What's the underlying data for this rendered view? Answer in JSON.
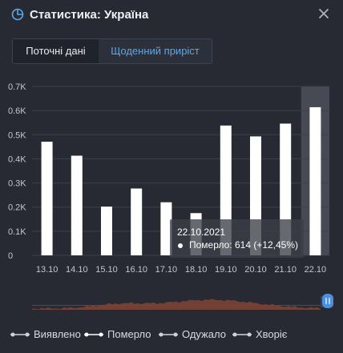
{
  "header": {
    "title": "Статистика: Україна"
  },
  "tabs": [
    {
      "label": "Поточні дані",
      "active": false
    },
    {
      "label": "Щоденний приріст",
      "active": true
    }
  ],
  "chart_data": {
    "type": "bar",
    "categories": [
      "13.10",
      "14.10",
      "15.10",
      "16.10",
      "17.10",
      "18.10",
      "19.10",
      "20.10",
      "21.10",
      "22.10"
    ],
    "series": [
      {
        "name": "Померло",
        "values": [
          471,
          413,
          202,
          277,
          220,
          175,
          538,
          493,
          546,
          614
        ]
      }
    ],
    "ylim": [
      0,
      700
    ],
    "yticks": [
      {
        "value": 0,
        "label": "0"
      },
      {
        "value": 100,
        "label": "0.1K"
      },
      {
        "value": 200,
        "label": "0.2K"
      },
      {
        "value": 300,
        "label": "0.3K"
      },
      {
        "value": 400,
        "label": "0.4K"
      },
      {
        "value": 500,
        "label": "0.5K"
      },
      {
        "value": 600,
        "label": "0.6K"
      },
      {
        "value": 700,
        "label": "0.7K"
      }
    ],
    "highlight_index": 9,
    "bar_color": "#ffffff",
    "grid_color": "#3d404a",
    "grid": true
  },
  "tooltip": {
    "date": "22.10.2021",
    "line": "Померло: 614 (+12,45%)"
  },
  "legend": [
    {
      "label": "Виявлено"
    },
    {
      "label": "Померло"
    },
    {
      "label": "Одужало"
    },
    {
      "label": "Хворіє"
    }
  ],
  "colors": {
    "accent": "#5aa8ea",
    "navigator": "#8b4a3c"
  }
}
